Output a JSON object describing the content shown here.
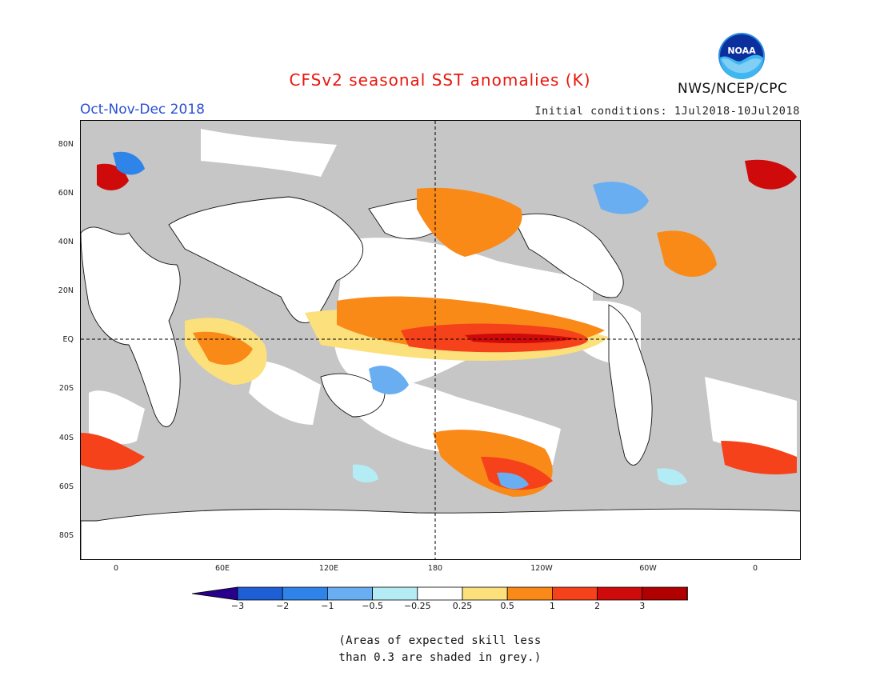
{
  "title": "CFSv2 seasonal SST anomalies (K)",
  "season": "Oct-Nov-Dec 2018",
  "organization": "NWS/NCEP/CPC",
  "logo_text": "NOAA",
  "initial_conditions": "Initial conditions: 1Jul2018-10Jul2018",
  "y_ticks": [
    "80N",
    "60N",
    "40N",
    "20N",
    "EQ",
    "20S",
    "40S",
    "60S",
    "80S"
  ],
  "x_ticks": [
    "0",
    "60E",
    "120E",
    "180",
    "120W",
    "60W",
    "0"
  ],
  "colorbar": {
    "labels": [
      "−3",
      "−2",
      "−1",
      "−0.5",
      "−0.25",
      "0.25",
      "0.5",
      "1",
      "2",
      "3"
    ],
    "colors": [
      "#28008c",
      "#1e5fd6",
      "#2f84ea",
      "#6aaef2",
      "#b4ecf5",
      "#ffffff",
      "#fbe07c",
      "#fa8a18",
      "#f5421a",
      "#cf0a0a",
      "#b00000",
      "#7a4a38"
    ]
  },
  "note_lines": [
    "(Areas of expected skill less",
    "than 0.3 are shaded in grey.)"
  ],
  "colors": {
    "title": "#e8160c",
    "season": "#2a4fd6",
    "land": "#ffffff",
    "no_skill": "#c6c6c6"
  }
}
